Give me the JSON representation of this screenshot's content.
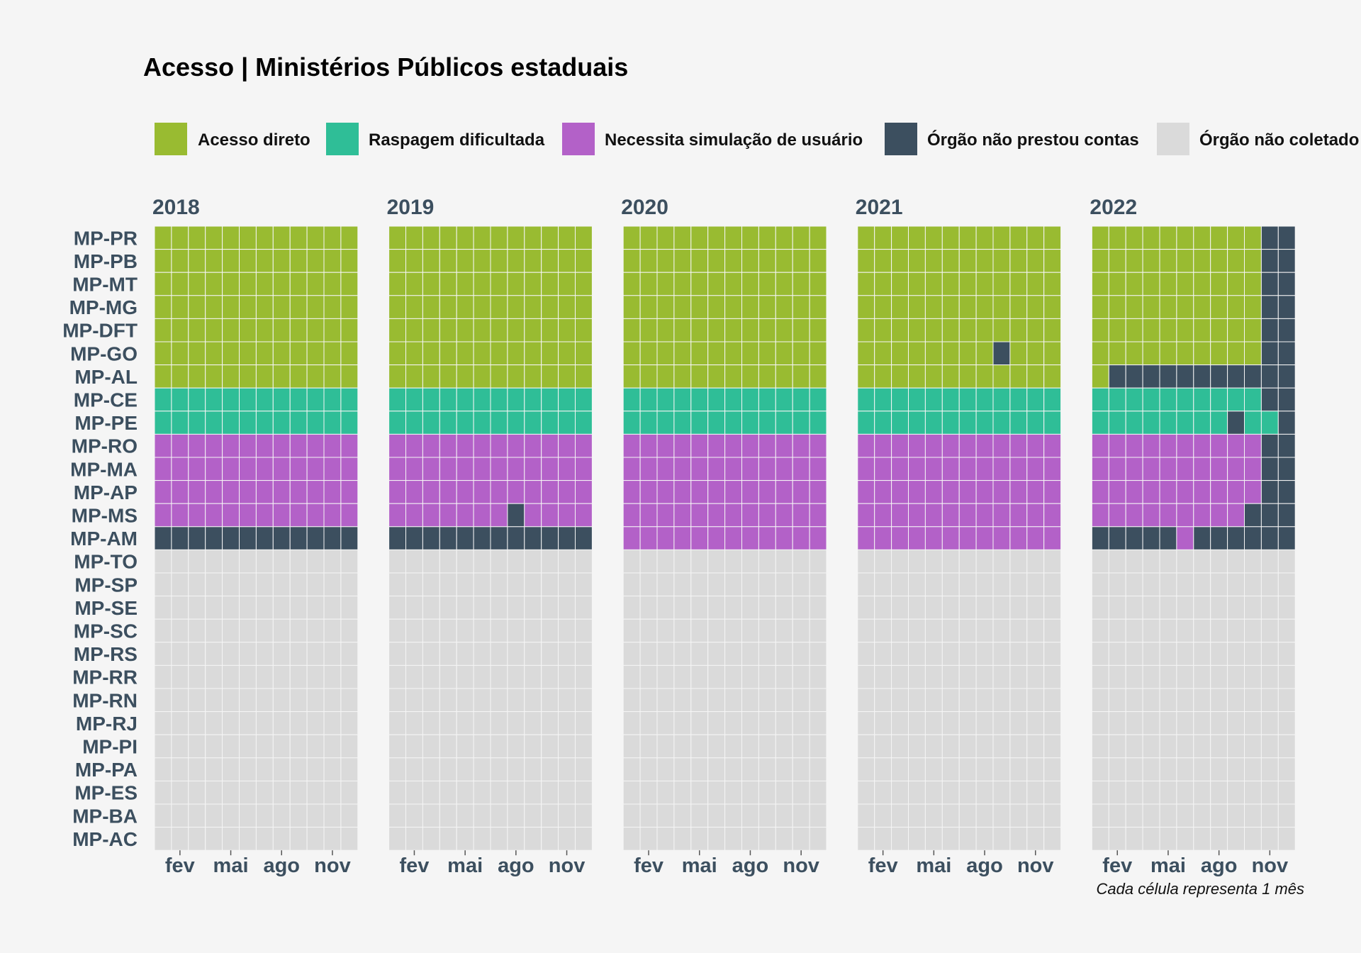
{
  "chart_data": {
    "type": "heatmap",
    "title": "Acesso | Ministérios Públicos estaduais",
    "caption": "Cada célula representa 1 mês",
    "legend_position": "top",
    "categories": [
      {
        "key": "A",
        "label": "Acesso direto",
        "color": "#99bb31"
      },
      {
        "key": "R",
        "label": "Raspagem dificultada",
        "color": "#2fbe97"
      },
      {
        "key": "N",
        "label": "Necessita simulação de usuário",
        "color": "#b361c8"
      },
      {
        "key": "O",
        "label": "Órgão não prestou contas",
        "color": "#3c4f5f"
      },
      {
        "key": "X",
        "label": "Órgão não coletado",
        "color": "#dadada"
      }
    ],
    "rows": [
      "MP-PR",
      "MP-PB",
      "MP-MT",
      "MP-MG",
      "MP-DFT",
      "MP-GO",
      "MP-AL",
      "MP-CE",
      "MP-PE",
      "MP-RO",
      "MP-MA",
      "MP-AP",
      "MP-MS",
      "MP-AM",
      "MP-TO",
      "MP-SP",
      "MP-SE",
      "MP-SC",
      "MP-RS",
      "MP-RR",
      "MP-RN",
      "MP-RJ",
      "MP-PI",
      "MP-PA",
      "MP-ES",
      "MP-BA",
      "MP-AC"
    ],
    "x_ticks": [
      {
        "month": 2,
        "label": "fev"
      },
      {
        "month": 5,
        "label": "mai"
      },
      {
        "month": 8,
        "label": "ago"
      },
      {
        "month": 11,
        "label": "nov"
      }
    ],
    "years": [
      {
        "year": "2018",
        "cells": [
          "AAAAAAAAAAAA",
          "AAAAAAAAAAAA",
          "AAAAAAAAAAAA",
          "AAAAAAAAAAAA",
          "AAAAAAAAAAAA",
          "AAAAAAAAAAAA",
          "AAAAAAAAAAAA",
          "RRRRRRRRRRRR",
          "RRRRRRRRRRRR",
          "NNNNNNNNNNNN",
          "NNNNNNNNNNNN",
          "NNNNNNNNNNNN",
          "NNNNNNNNNNNN",
          "OOOOOOOOOOOO",
          "XXXXXXXXXXXX",
          "XXXXXXXXXXXX",
          "XXXXXXXXXXXX",
          "XXXXXXXXXXXX",
          "XXXXXXXXXXXX",
          "XXXXXXXXXXXX",
          "XXXXXXXXXXXX",
          "XXXXXXXXXXXX",
          "XXXXXXXXXXXX",
          "XXXXXXXXXXXX",
          "XXXXXXXXXXXX",
          "XXXXXXXXXXXX",
          "XXXXXXXXXXXX"
        ]
      },
      {
        "year": "2019",
        "cells": [
          "AAAAAAAAAAAA",
          "AAAAAAAAAAAA",
          "AAAAAAAAAAAA",
          "AAAAAAAAAAAA",
          "AAAAAAAAAAAA",
          "AAAAAAAAAAAA",
          "AAAAAAAAAAAA",
          "RRRRRRRRRRRR",
          "RRRRRRRRRRRR",
          "NNNNNNNNNNNN",
          "NNNNNNNNNNNN",
          "NNNNNNNNNNNN",
          "NNNNNNNONNNN",
          "OOOOOOOOOOOO",
          "XXXXXXXXXXXX",
          "XXXXXXXXXXXX",
          "XXXXXXXXXXXX",
          "XXXXXXXXXXXX",
          "XXXXXXXXXXXX",
          "XXXXXXXXXXXX",
          "XXXXXXXXXXXX",
          "XXXXXXXXXXXX",
          "XXXXXXXXXXXX",
          "XXXXXXXXXXXX",
          "XXXXXXXXXXXX",
          "XXXXXXXXXXXX",
          "XXXXXXXXXXXX"
        ]
      },
      {
        "year": "2020",
        "cells": [
          "AAAAAAAAAAAA",
          "AAAAAAAAAAAA",
          "AAAAAAAAAAAA",
          "AAAAAAAAAAAA",
          "AAAAAAAAAAAA",
          "AAAAAAAAAAAA",
          "AAAAAAAAAAAA",
          "RRRRRRRRRRRR",
          "RRRRRRRRRRRR",
          "NNNNNNNNNNNN",
          "NNNNNNNNNNNN",
          "NNNNNNNNNNNN",
          "NNNNNNNNNNNN",
          "NNNNNNNNNNNN",
          "XXXXXXXXXXXX",
          "XXXXXXXXXXXX",
          "XXXXXXXXXXXX",
          "XXXXXXXXXXXX",
          "XXXXXXXXXXXX",
          "XXXXXXXXXXXX",
          "XXXXXXXXXXXX",
          "XXXXXXXXXXXX",
          "XXXXXXXXXXXX",
          "XXXXXXXXXXXX",
          "XXXXXXXXXXXX",
          "XXXXXXXXXXXX",
          "XXXXXXXXXXXX"
        ]
      },
      {
        "year": "2021",
        "cells": [
          "AAAAAAAAAAAA",
          "AAAAAAAAAAAA",
          "AAAAAAAAAAAA",
          "AAAAAAAAAAAA",
          "AAAAAAAAAAAA",
          "AAAAAAAAOAAA",
          "AAAAAAAAAAAA",
          "RRRRRRRRRRRR",
          "RRRRRRRRRRRR",
          "NNNNNNNNNNNN",
          "NNNNNNNNNNNN",
          "NNNNNNNNNNNN",
          "NNNNNNNNNNNN",
          "NNNNNNNNNNNN",
          "XXXXXXXXXXXX",
          "XXXXXXXXXXXX",
          "XXXXXXXXXXXX",
          "XXXXXXXXXXXX",
          "XXXXXXXXXXXX",
          "XXXXXXXXXXXX",
          "XXXXXXXXXXXX",
          "XXXXXXXXXXXX",
          "XXXXXXXXXXXX",
          "XXXXXXXXXXXX",
          "XXXXXXXXXXXX",
          "XXXXXXXXXXXX",
          "XXXXXXXXXXXX"
        ]
      },
      {
        "year": "2022",
        "cells": [
          "AAAAAAAAAAOO",
          "AAAAAAAAAAOO",
          "AAAAAAAAAAOO",
          "AAAAAAAAAAOO",
          "AAAAAAAAAAOO",
          "AAAAAAAAAAOO",
          "AOOOOOOOOOOO",
          "RRRRRRRRRROO",
          "RRRRRRRRORRO",
          "NNNNNNNNNNOO",
          "NNNNNNNNNNOO",
          "NNNNNNNNNNOO",
          "NNNNNNNNNOOO",
          "OOOOONOOOOOO",
          "XXXXXXXXXXXX",
          "XXXXXXXXXXXX",
          "XXXXXXXXXXXX",
          "XXXXXXXXXXXX",
          "XXXXXXXXXXXX",
          "XXXXXXXXXXXX",
          "XXXXXXXXXXXX",
          "XXXXXXXXXXXX",
          "XXXXXXXXXXXX",
          "XXXXXXXXXXXX",
          "XXXXXXXXXXXX",
          "XXXXXXXXXXXX",
          "XXXXXXXXXXXX"
        ]
      }
    ]
  }
}
